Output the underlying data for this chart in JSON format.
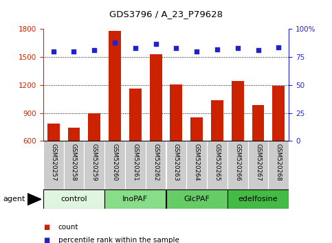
{
  "title": "GDS3796 / A_23_P79628",
  "categories": [
    "GSM520257",
    "GSM520258",
    "GSM520259",
    "GSM520260",
    "GSM520261",
    "GSM520262",
    "GSM520263",
    "GSM520264",
    "GSM520265",
    "GSM520266",
    "GSM520267",
    "GSM520268"
  ],
  "bar_values": [
    790,
    745,
    895,
    1780,
    1165,
    1530,
    1205,
    855,
    1035,
    1245,
    985,
    1195
  ],
  "bar_bottom": 600,
  "percentile_values": [
    80,
    80,
    81,
    88,
    83,
    87,
    83,
    80,
    82,
    83,
    81,
    84
  ],
  "bar_color": "#cc2200",
  "percentile_color": "#2222cc",
  "ylim_left": [
    600,
    1800
  ],
  "ylim_right": [
    0,
    100
  ],
  "yticks_left": [
    600,
    900,
    1200,
    1500,
    1800
  ],
  "yticks_right": [
    0,
    25,
    50,
    75,
    100
  ],
  "agent_groups": [
    {
      "label": "control",
      "start": 0,
      "end": 3,
      "color": "#e0f5e0"
    },
    {
      "label": "InoPAF",
      "start": 3,
      "end": 6,
      "color": "#88dd88"
    },
    {
      "label": "GlcPAF",
      "start": 6,
      "end": 9,
      "color": "#66cc66"
    },
    {
      "label": "edelfosine",
      "start": 9,
      "end": 12,
      "color": "#44bb44"
    }
  ],
  "agent_label": "agent",
  "legend_count_label": "count",
  "legend_pct_label": "percentile rank within the sample",
  "tick_color_left": "#cc2200",
  "tick_color_right": "#2222cc",
  "grid_color": "#000000",
  "xticklabel_bg": "#cccccc",
  "fig_width": 4.83,
  "fig_height": 3.54,
  "dpi": 100
}
